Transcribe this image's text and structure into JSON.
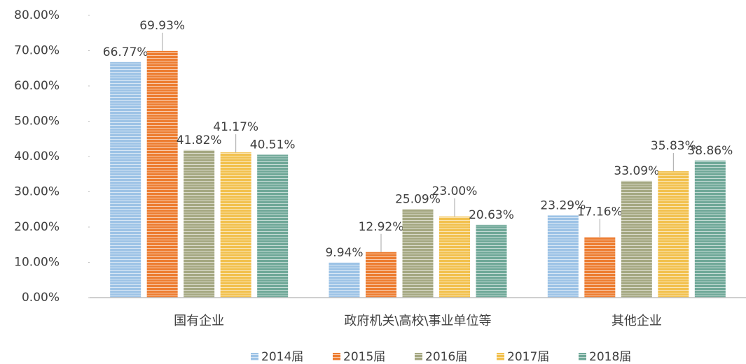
{
  "chart_data": {
    "type": "bar",
    "categories": [
      "国有企业",
      "政府机关\\高校\\事业单位等",
      "其他企业"
    ],
    "series": [
      {
        "name": "2014届",
        "color": "#9dc3e6",
        "values": [
          66.77,
          9.94,
          23.29
        ],
        "value_labels": [
          "66.77%",
          "9.94%",
          "23.29%"
        ]
      },
      {
        "name": "2015届",
        "color": "#ed7d31",
        "values": [
          69.93,
          12.92,
          17.16
        ],
        "value_labels": [
          "69.93%",
          "12.92%",
          "17.16%"
        ]
      },
      {
        "name": "2016届",
        "color": "#a5a882",
        "values": [
          41.82,
          25.09,
          33.09
        ],
        "value_labels": [
          "41.82%",
          "25.09%",
          "33.09%"
        ]
      },
      {
        "name": "2017届",
        "color": "#f2c14e",
        "values": [
          41.17,
          23.0,
          35.83
        ],
        "value_labels": [
          "41.17%",
          "23.00%",
          "35.83%"
        ]
      },
      {
        "name": "2018届",
        "color": "#6fa898",
        "values": [
          40.51,
          20.63,
          38.86
        ],
        "value_labels": [
          "40.51%",
          "20.63%",
          "38.86%"
        ]
      }
    ],
    "ylim": [
      0,
      80
    ],
    "yticks": [
      {
        "value": 0,
        "label": "0.00%"
      },
      {
        "value": 10,
        "label": "10.00%"
      },
      {
        "value": 20,
        "label": "20.00%"
      },
      {
        "value": 30,
        "label": "30.00%"
      },
      {
        "value": 40,
        "label": "40.00%"
      },
      {
        "value": 50,
        "label": "50.00%"
      },
      {
        "value": 60,
        "label": "60.00%"
      },
      {
        "value": 70,
        "label": "70.00%"
      },
      {
        "value": 80,
        "label": "80.00%"
      }
    ],
    "legend": "bottom"
  }
}
